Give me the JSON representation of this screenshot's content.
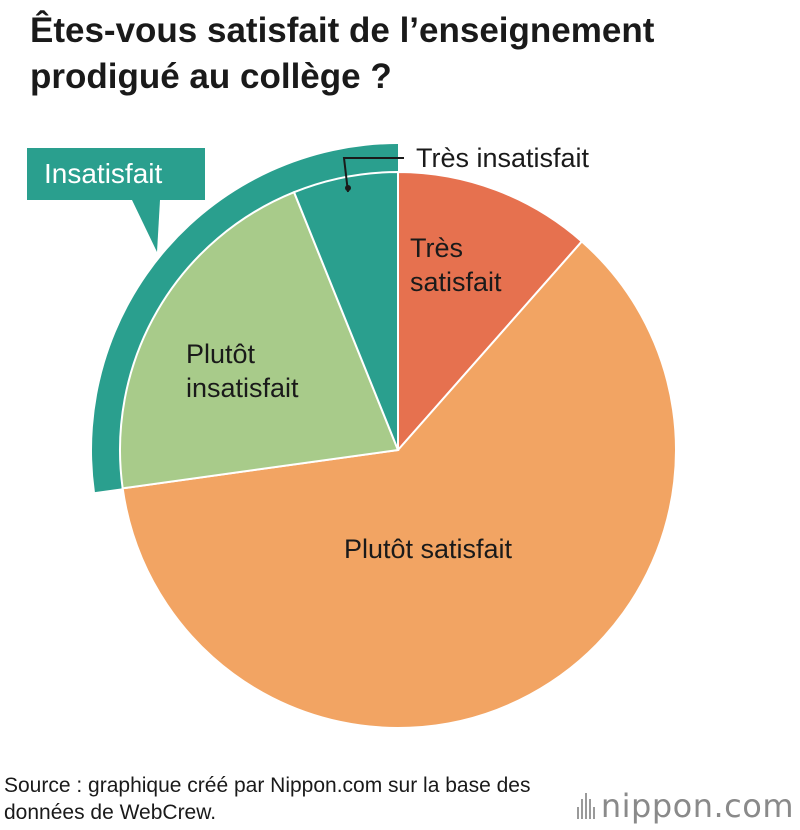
{
  "title": "Êtes-vous satisfait de l’enseignement prodigué au collège ?",
  "source": "Source : graphique créé par Nippon.com sur la base des données de WebCrew.",
  "brand": {
    "name": "nippon",
    "suffix": ".com"
  },
  "colors": {
    "tres_satisfait": "#e6714f",
    "plutot_satisfait": "#f2a463",
    "plutot_insatisfait": "#a8cb8a",
    "tres_insatisfait": "#2a9f8e",
    "group_insatisfait": "#2a9f8e",
    "slice_border": "#ffffff"
  },
  "chart_data": {
    "type": "pie",
    "title": "Êtes-vous satisfait de l’enseignement prodigué au collège ?",
    "unit": "%",
    "start": "12 o'clock",
    "direction": "clockwise",
    "slices": [
      {
        "key": "tres_satisfait",
        "label": "Très satisfait",
        "value": 11.5
      },
      {
        "key": "plutot_satisfait",
        "label": "Plutôt satisfait",
        "value": 61.3
      },
      {
        "key": "plutot_insatisfait",
        "label": "Plutôt insatisfait",
        "value": 21.1
      },
      {
        "key": "tres_insatisfait",
        "label": "Très insatisfait",
        "value": 6.1
      }
    ],
    "groups": [
      {
        "label": "Insatisfait",
        "members": [
          "Plutôt insatisfait",
          "Très insatisfait"
        ]
      }
    ]
  }
}
